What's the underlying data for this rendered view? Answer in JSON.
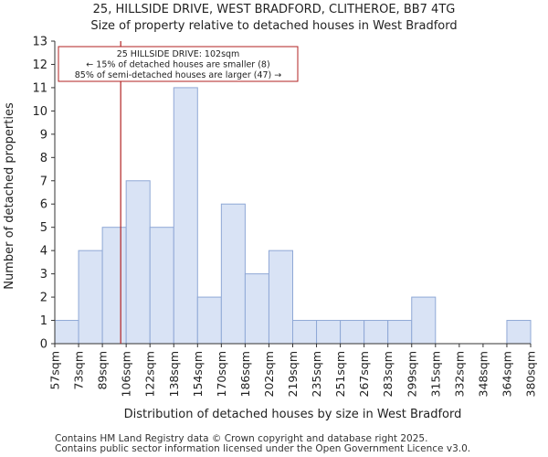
{
  "header": {
    "title_line1": "25, HILLSIDE DRIVE, WEST BRADFORD, CLITHEROE, BB7 4TG",
    "title_line2": "Size of property relative to detached houses in West Bradford"
  },
  "footer": {
    "line1": "Contains HM Land Registry data © Crown copyright and database right 2025.",
    "line2": "Contains public sector information licensed under the Open Government Licence v3.0."
  },
  "chart_data": {
    "type": "bar",
    "title": "Size of property relative to detached houses in West Bradford",
    "xlabel": "Distribution of detached houses by size in West Bradford",
    "ylabel": "Number of detached properties",
    "bin_edges": [
      "57sqm",
      "73sqm",
      "89sqm",
      "106sqm",
      "122sqm",
      "138sqm",
      "154sqm",
      "170sqm",
      "186sqm",
      "202sqm",
      "219sqm",
      "235sqm",
      "251sqm",
      "267sqm",
      "283sqm",
      "299sqm",
      "315sqm",
      "332sqm",
      "348sqm",
      "364sqm",
      "380sqm"
    ],
    "values": [
      1,
      4,
      5,
      7,
      5,
      11,
      2,
      6,
      3,
      4,
      1,
      1,
      1,
      1,
      1,
      2,
      0,
      0,
      0,
      1
    ],
    "ylim": [
      0,
      13
    ],
    "yticks": [
      0,
      1,
      2,
      3,
      4,
      5,
      6,
      7,
      8,
      9,
      10,
      11,
      12,
      13
    ],
    "grid": false,
    "bar_color": "#d9e3f5",
    "bar_edge_color": "#8fa8d6",
    "marker": {
      "value_bin_index": 2.77,
      "color": "#b22222",
      "label": "25 HILLSIDE DRIVE: 102sqm"
    },
    "annotation": {
      "lines": [
        "25 HILLSIDE DRIVE: 102sqm",
        "← 15% of detached houses are smaller (8)",
        "85% of semi-detached houses are larger (47) →"
      ],
      "border_color": "#b22222"
    }
  }
}
